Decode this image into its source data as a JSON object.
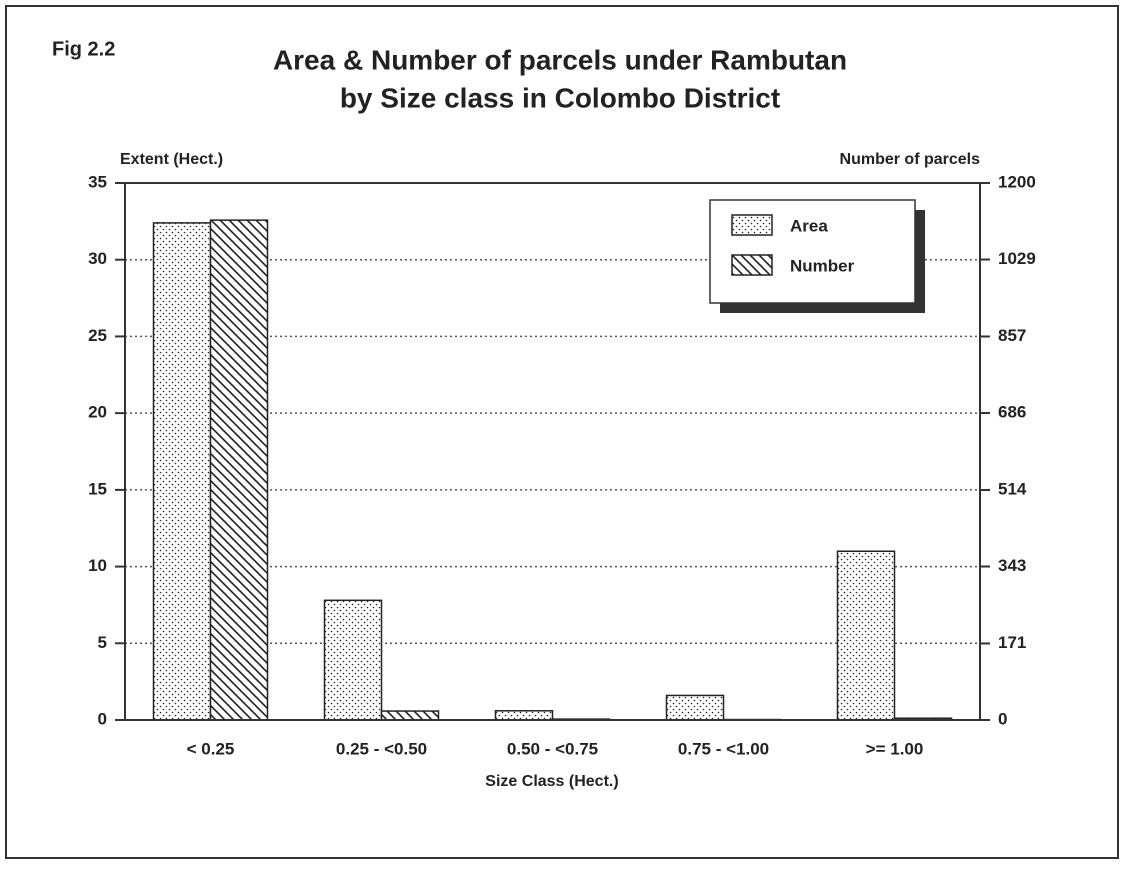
{
  "chart_data": {
    "type": "bar",
    "figure_label": "Fig 2.2",
    "title": "Area & Number of parcels under Rambutan",
    "subtitle": "by Size class in Colombo District",
    "y_label": "Extent (Hect.)",
    "y2_label": "Number of parcels",
    "x_label": "Size Class  (Hect.)",
    "categories": [
      "< 0.25",
      "0.25 - <0.50",
      "0.50 - <0.75",
      "0.75 - <1.00",
      ">= 1.00"
    ],
    "series": [
      {
        "name": "Area",
        "color": "#222222",
        "pattern": "dots",
        "values": [
          32.4,
          7.8,
          0.6,
          1.6,
          11.0
        ]
      },
      {
        "name": "Number",
        "color": "#222222",
        "pattern": "hatch",
        "axis": "y2",
        "values": [
          1117,
          20,
          2,
          1,
          4
        ]
      }
    ],
    "ylim": [
      0,
      35
    ],
    "yticks": [
      0,
      5,
      10,
      15,
      20,
      25,
      30,
      35
    ],
    "y2lim": [
      0,
      1200
    ],
    "y2ticks": [
      0,
      171,
      343,
      514,
      686,
      857,
      1029,
      1200
    ],
    "grid": true,
    "legend": "upper right"
  }
}
